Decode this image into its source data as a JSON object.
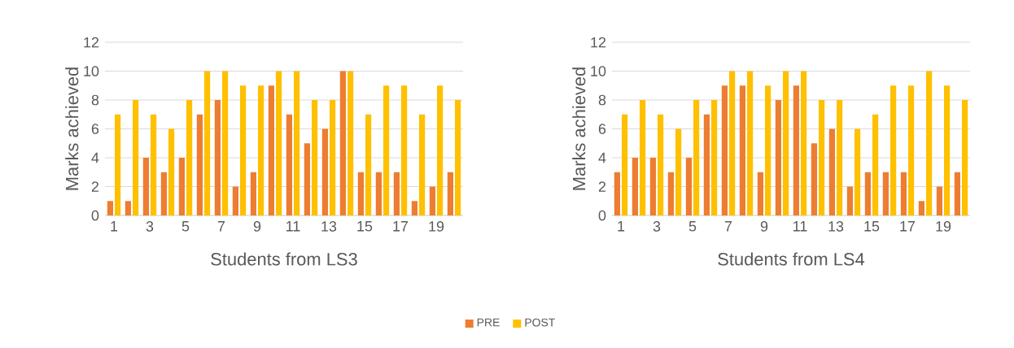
{
  "chart_data": [
    {
      "type": "bar",
      "xlabel": "Students from LS3",
      "ylabel": "Marks achieved",
      "categories": [
        "1",
        null,
        "3",
        null,
        "5",
        null,
        "7",
        null,
        "9",
        null,
        "11",
        null,
        "13",
        null,
        "15",
        null,
        "17",
        null,
        "19",
        null
      ],
      "ylim": [
        0,
        12
      ],
      "yticks": [
        0,
        2,
        4,
        6,
        8,
        10,
        12
      ],
      "grid": "y",
      "legend": "bottom",
      "series": [
        {
          "name": "PRE",
          "color": "#ed7d31",
          "values": [
            1,
            1,
            4,
            3,
            4,
            7,
            8,
            2,
            3,
            9,
            7,
            5,
            6,
            10,
            3,
            3,
            3,
            1,
            2,
            3
          ]
        },
        {
          "name": "POST",
          "color": "#ffc000",
          "values": [
            7,
            8,
            7,
            6,
            8,
            10,
            10,
            9,
            9,
            10,
            10,
            8,
            8,
            10,
            7,
            9,
            9,
            7,
            9,
            8
          ]
        }
      ]
    },
    {
      "type": "bar",
      "xlabel": "Students from LS4",
      "ylabel": "Marks achieved",
      "categories": [
        "1",
        null,
        "3",
        null,
        "5",
        null,
        "7",
        null,
        "9",
        null,
        "11",
        null,
        "13",
        null,
        "15",
        null,
        "17",
        null,
        "19",
        null
      ],
      "ylim": [
        0,
        12
      ],
      "yticks": [
        0,
        2,
        4,
        6,
        8,
        10,
        12
      ],
      "grid": "y",
      "series": [
        {
          "color": "#ed7d31",
          "values": [
            3,
            4,
            4,
            3,
            4,
            7,
            9,
            9,
            3,
            8,
            9,
            5,
            6,
            2,
            3,
            3,
            3,
            1,
            2,
            3
          ]
        },
        {
          "color": "#ffc000",
          "values": [
            7,
            8,
            7,
            6,
            8,
            8,
            10,
            10,
            9,
            10,
            10,
            8,
            8,
            6,
            7,
            9,
            9,
            10,
            9,
            8
          ]
        }
      ]
    }
  ]
}
